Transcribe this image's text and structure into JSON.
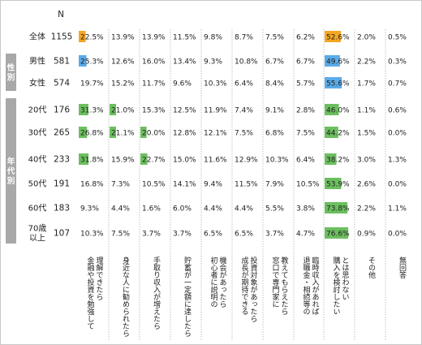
{
  "chart_data": {
    "type": "table",
    "n_header": "N",
    "group_labels": [
      {
        "label": "性別",
        "rows": [
          1,
          2
        ]
      },
      {
        "label": "年代別",
        "rows": [
          3,
          4,
          5,
          6,
          7,
          8
        ]
      }
    ],
    "rows": [
      {
        "label": "全体",
        "n": 1155,
        "values": [
          22.5,
          13.9,
          13.9,
          11.5,
          9.8,
          8.7,
          7.5,
          6.2,
          52.6,
          2.0,
          0.5
        ],
        "color": "#f5a623"
      },
      {
        "label": "男性",
        "n": 581,
        "values": [
          25.3,
          12.6,
          16.0,
          13.4,
          9.3,
          10.8,
          6.7,
          6.7,
          49.6,
          2.2,
          0.3
        ],
        "color": "#5aabe8"
      },
      {
        "label": "女性",
        "n": 574,
        "values": [
          19.7,
          15.2,
          11.7,
          9.6,
          10.3,
          6.4,
          8.4,
          5.7,
          55.6,
          1.7,
          0.7
        ],
        "color": "#5aabe8"
      },
      {
        "label": "20代",
        "n": 176,
        "values": [
          31.3,
          21.0,
          15.3,
          12.5,
          11.9,
          7.4,
          9.1,
          2.8,
          46.0,
          1.1,
          0.6
        ],
        "color": "#6cbf5f"
      },
      {
        "label": "30代",
        "n": 265,
        "values": [
          26.8,
          21.1,
          20.0,
          12.8,
          12.1,
          7.5,
          6.8,
          7.5,
          44.2,
          1.5,
          0.0
        ],
        "color": "#6cbf5f"
      },
      {
        "label": "40代",
        "n": 233,
        "values": [
          31.8,
          15.9,
          22.7,
          15.0,
          11.6,
          12.9,
          10.3,
          6.4,
          38.2,
          3.0,
          1.3
        ],
        "color": "#6cbf5f"
      },
      {
        "label": "50代",
        "n": 191,
        "values": [
          16.8,
          7.3,
          10.5,
          14.1,
          9.4,
          11.5,
          7.9,
          10.5,
          53.9,
          2.6,
          0.0
        ],
        "color": "#6cbf5f"
      },
      {
        "label": "60代",
        "n": 183,
        "values": [
          9.3,
          4.4,
          1.6,
          6.0,
          4.4,
          4.4,
          5.5,
          3.8,
          73.8,
          2.2,
          1.1
        ],
        "color": "#6cbf5f"
      },
      {
        "label": "70歳以上",
        "label_lines": [
          "70歳",
          "以上"
        ],
        "n": 107,
        "values": [
          10.3,
          7.5,
          3.7,
          3.7,
          6.5,
          6.5,
          3.7,
          4.7,
          76.6,
          0.9,
          0.0
        ],
        "color": "#6cbf5f"
      }
    ],
    "categories": [
      "理解できたら金融や投資を勉強して",
      "身近な人に勧められたら",
      "手取り収入が増えたら",
      "貯蓄が一定額に達したら",
      "機会があったら初心者に説明の",
      "投資対象があったら成長が期待できる",
      "教えてもらえたら窓口で専門家に",
      "臨時収入があれば退職金・相続等の",
      "とは思わない購入を検討したい",
      "その他",
      "無回答"
    ],
    "category_lines": [
      [
        "理解できたら",
        "金融や投資を勉強して"
      ],
      [
        "身近な人に勧められたら"
      ],
      [
        "手取り収入が増えたら"
      ],
      [
        "貯蓄が一定額に達したら"
      ],
      [
        "機会があったら",
        "初心者に説明の"
      ],
      [
        "投資対象があったら",
        "成長が期待できる"
      ],
      [
        "教えてもらえたら",
        "窓口で専門家に"
      ],
      [
        "臨時収入があれば",
        "退職金・相続等の"
      ],
      [
        "とは思わない",
        "購入を検討したい"
      ],
      [
        "その他"
      ],
      [
        "無回答"
      ]
    ],
    "highlight_threshold": 20,
    "bar_scale_max": 100,
    "colors": {
      "overall": "#f5a623",
      "gender": "#5aabe8",
      "age": "#6cbf5f",
      "group_tab": "#a8a8a8",
      "divider": "#b4b4b4"
    }
  }
}
